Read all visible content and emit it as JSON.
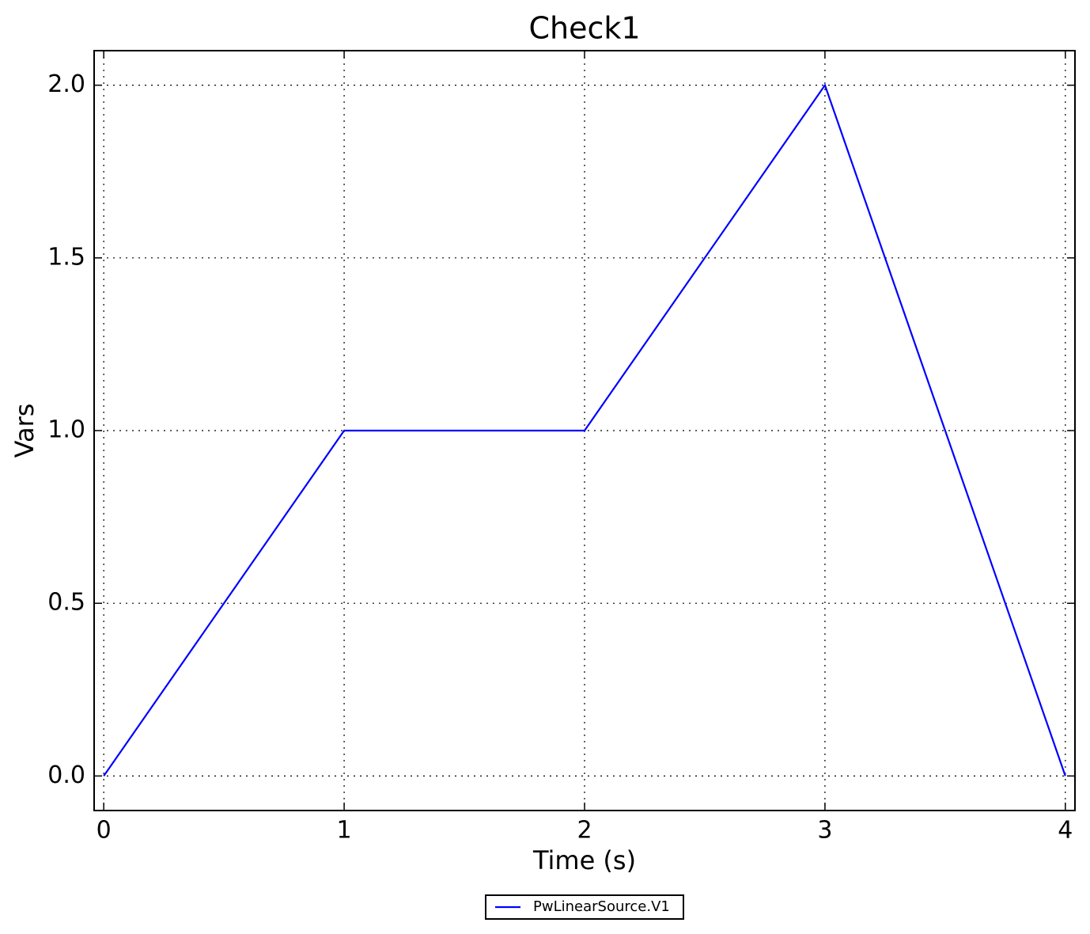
{
  "chart_data": {
    "type": "line",
    "title": "Check1",
    "x_label": "Time (s)",
    "y_label": "Vars",
    "x": [
      0,
      1,
      2,
      3,
      4
    ],
    "series": [
      {
        "name": "PwLinearSource.V1",
        "color": "#0000ff",
        "values": [
          0,
          1,
          1,
          2,
          0
        ]
      }
    ],
    "xlim": [
      -0.04,
      4.04
    ],
    "ylim": [
      -0.1,
      2.1
    ],
    "xticks": [
      0,
      1,
      2,
      3,
      4
    ],
    "yticks": [
      {
        "value": 0,
        "label": "0.0"
      },
      {
        "value": 0.5,
        "label": "0.5"
      },
      {
        "value": 1,
        "label": "1.0"
      },
      {
        "value": 1.5,
        "label": "1.5"
      },
      {
        "value": 2,
        "label": "2.0"
      }
    ],
    "grid": true,
    "legend": "bottom"
  }
}
